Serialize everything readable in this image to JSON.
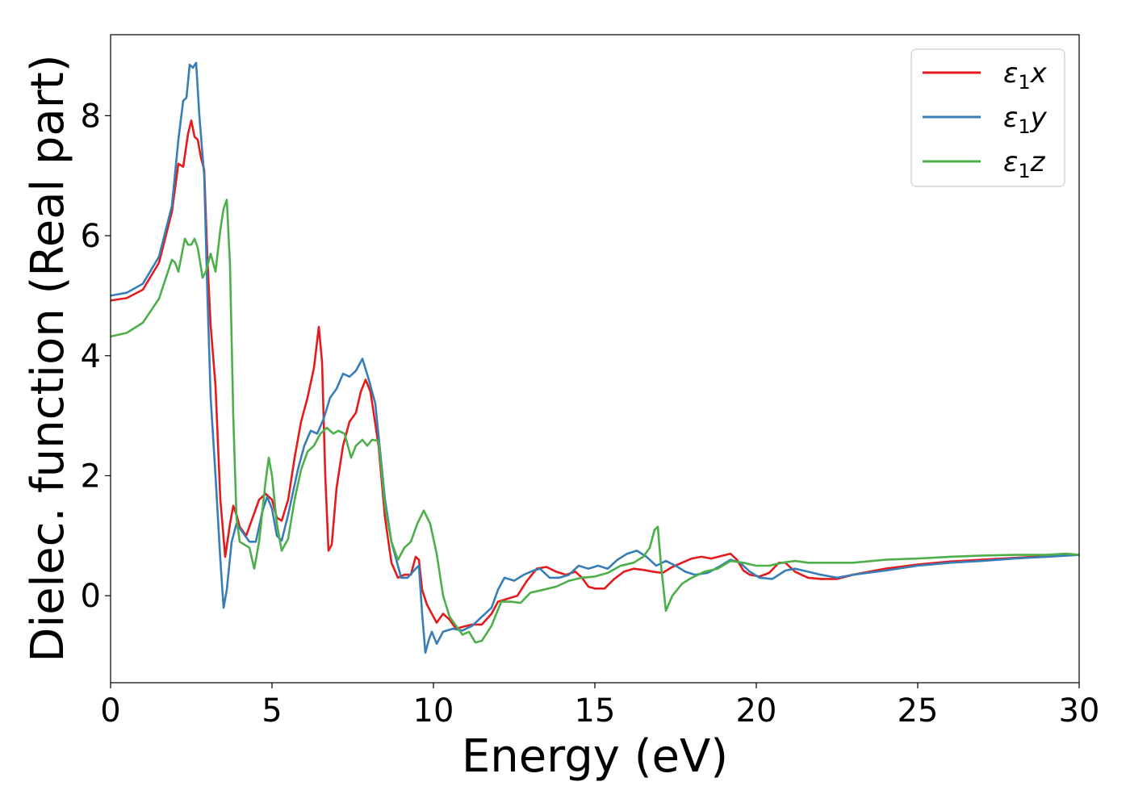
{
  "chart_data": {
    "type": "line",
    "title": "",
    "xlabel": "Energy (eV)",
    "ylabel": "Dielec. function (Real part)",
    "xlim": [
      0,
      30
    ],
    "ylim": [
      -1.45,
      9.35
    ],
    "xticks": [
      0,
      5,
      10,
      15,
      20,
      25,
      30
    ],
    "yticks": [
      0,
      2,
      4,
      6,
      8
    ],
    "grid": false,
    "legend_position": "top-right",
    "series": [
      {
        "name": "ε1x",
        "legend": {
          "base": "ε",
          "sub": "1",
          "comp": "x"
        },
        "color": "#e41a1c",
        "points": [
          [
            0,
            4.92
          ],
          [
            0.5,
            4.96
          ],
          [
            1,
            5.1
          ],
          [
            1.5,
            5.55
          ],
          [
            1.9,
            6.4
          ],
          [
            2.1,
            7.2
          ],
          [
            2.25,
            7.15
          ],
          [
            2.4,
            7.7
          ],
          [
            2.5,
            7.92
          ],
          [
            2.6,
            7.65
          ],
          [
            2.7,
            7.6
          ],
          [
            2.8,
            7.3
          ],
          [
            2.9,
            7.1
          ],
          [
            3.0,
            5.6
          ],
          [
            3.1,
            4.5
          ],
          [
            3.25,
            3.5
          ],
          [
            3.4,
            1.6
          ],
          [
            3.55,
            0.65
          ],
          [
            3.7,
            1.2
          ],
          [
            3.8,
            1.5
          ],
          [
            3.9,
            1.35
          ],
          [
            4.0,
            1.15
          ],
          [
            4.2,
            1.0
          ],
          [
            4.4,
            1.3
          ],
          [
            4.6,
            1.6
          ],
          [
            4.8,
            1.7
          ],
          [
            5.0,
            1.6
          ],
          [
            5.15,
            1.3
          ],
          [
            5.3,
            1.25
          ],
          [
            5.5,
            1.6
          ],
          [
            5.7,
            2.3
          ],
          [
            5.9,
            2.9
          ],
          [
            6.1,
            3.3
          ],
          [
            6.3,
            3.8
          ],
          [
            6.45,
            4.48
          ],
          [
            6.55,
            3.9
          ],
          [
            6.65,
            2.0
          ],
          [
            6.75,
            0.75
          ],
          [
            6.85,
            0.85
          ],
          [
            7.0,
            1.8
          ],
          [
            7.2,
            2.5
          ],
          [
            7.4,
            2.9
          ],
          [
            7.6,
            3.05
          ],
          [
            7.75,
            3.4
          ],
          [
            7.9,
            3.6
          ],
          [
            8.05,
            3.4
          ],
          [
            8.3,
            2.5
          ],
          [
            8.5,
            1.3
          ],
          [
            8.7,
            0.55
          ],
          [
            8.9,
            0.3
          ],
          [
            9.1,
            0.35
          ],
          [
            9.3,
            0.35
          ],
          [
            9.45,
            0.65
          ],
          [
            9.55,
            0.6
          ],
          [
            9.65,
            0.1
          ],
          [
            9.8,
            -0.15
          ],
          [
            9.95,
            -0.3
          ],
          [
            10.1,
            -0.45
          ],
          [
            10.3,
            -0.3
          ],
          [
            10.5,
            -0.4
          ],
          [
            10.7,
            -0.55
          ],
          [
            10.9,
            -0.52
          ],
          [
            11.2,
            -0.48
          ],
          [
            11.5,
            -0.48
          ],
          [
            11.8,
            -0.3
          ],
          [
            12.0,
            -0.1
          ],
          [
            12.3,
            -0.05
          ],
          [
            12.6,
            0.0
          ],
          [
            12.9,
            0.25
          ],
          [
            13.2,
            0.45
          ],
          [
            13.5,
            0.48
          ],
          [
            13.8,
            0.4
          ],
          [
            14.1,
            0.35
          ],
          [
            14.4,
            0.4
          ],
          [
            14.6,
            0.3
          ],
          [
            14.8,
            0.15
          ],
          [
            15.0,
            0.12
          ],
          [
            15.3,
            0.12
          ],
          [
            15.6,
            0.28
          ],
          [
            15.9,
            0.4
          ],
          [
            16.2,
            0.45
          ],
          [
            16.5,
            0.43
          ],
          [
            16.8,
            0.4
          ],
          [
            17.1,
            0.38
          ],
          [
            17.4,
            0.48
          ],
          [
            17.7,
            0.55
          ],
          [
            18.0,
            0.62
          ],
          [
            18.3,
            0.65
          ],
          [
            18.6,
            0.62
          ],
          [
            18.9,
            0.66
          ],
          [
            19.2,
            0.7
          ],
          [
            19.4,
            0.6
          ],
          [
            19.6,
            0.42
          ],
          [
            19.8,
            0.35
          ],
          [
            20.1,
            0.32
          ],
          [
            20.4,
            0.38
          ],
          [
            20.7,
            0.55
          ],
          [
            20.9,
            0.55
          ],
          [
            21.2,
            0.4
          ],
          [
            21.6,
            0.3
          ],
          [
            22.0,
            0.28
          ],
          [
            22.5,
            0.28
          ],
          [
            23.0,
            0.35
          ],
          [
            24.0,
            0.45
          ],
          [
            25.0,
            0.52
          ],
          [
            26.0,
            0.57
          ],
          [
            27.0,
            0.6
          ],
          [
            28.0,
            0.63
          ],
          [
            29.0,
            0.66
          ],
          [
            30.0,
            0.68
          ]
        ]
      },
      {
        "name": "ε1y",
        "legend": {
          "base": "ε",
          "sub": "1",
          "comp": "y"
        },
        "color": "#377eb8",
        "points": [
          [
            0,
            5.0
          ],
          [
            0.5,
            5.05
          ],
          [
            1,
            5.2
          ],
          [
            1.5,
            5.65
          ],
          [
            1.9,
            6.5
          ],
          [
            2.1,
            7.6
          ],
          [
            2.25,
            8.25
          ],
          [
            2.35,
            8.3
          ],
          [
            2.45,
            8.85
          ],
          [
            2.55,
            8.8
          ],
          [
            2.65,
            8.88
          ],
          [
            2.75,
            8.0
          ],
          [
            2.9,
            7.0
          ],
          [
            3.0,
            5.0
          ],
          [
            3.1,
            3.3
          ],
          [
            3.25,
            2.0
          ],
          [
            3.4,
            0.6
          ],
          [
            3.5,
            -0.2
          ],
          [
            3.6,
            0.1
          ],
          [
            3.75,
            0.9
          ],
          [
            3.9,
            1.2
          ],
          [
            4.1,
            1.05
          ],
          [
            4.3,
            0.9
          ],
          [
            4.5,
            0.9
          ],
          [
            4.7,
            1.4
          ],
          [
            4.85,
            1.65
          ],
          [
            5.0,
            1.45
          ],
          [
            5.15,
            1.0
          ],
          [
            5.3,
            0.92
          ],
          [
            5.5,
            1.35
          ],
          [
            5.8,
            2.1
          ],
          [
            6.0,
            2.5
          ],
          [
            6.2,
            2.75
          ],
          [
            6.4,
            2.7
          ],
          [
            6.6,
            2.95
          ],
          [
            6.8,
            3.3
          ],
          [
            7.0,
            3.45
          ],
          [
            7.2,
            3.7
          ],
          [
            7.4,
            3.65
          ],
          [
            7.6,
            3.75
          ],
          [
            7.8,
            3.95
          ],
          [
            8.0,
            3.6
          ],
          [
            8.2,
            3.2
          ],
          [
            8.5,
            1.6
          ],
          [
            8.7,
            0.9
          ],
          [
            9.0,
            0.3
          ],
          [
            9.2,
            0.3
          ],
          [
            9.45,
            0.45
          ],
          [
            9.55,
            0.5
          ],
          [
            9.65,
            -0.3
          ],
          [
            9.75,
            -0.95
          ],
          [
            9.85,
            -0.75
          ],
          [
            9.95,
            -0.6
          ],
          [
            10.1,
            -0.8
          ],
          [
            10.3,
            -0.6
          ],
          [
            10.6,
            -0.55
          ],
          [
            10.9,
            -0.58
          ],
          [
            11.2,
            -0.5
          ],
          [
            11.5,
            -0.35
          ],
          [
            11.8,
            -0.2
          ],
          [
            12.0,
            0.1
          ],
          [
            12.2,
            0.3
          ],
          [
            12.5,
            0.25
          ],
          [
            12.8,
            0.35
          ],
          [
            13.1,
            0.42
          ],
          [
            13.3,
            0.45
          ],
          [
            13.6,
            0.3
          ],
          [
            13.9,
            0.3
          ],
          [
            14.2,
            0.35
          ],
          [
            14.5,
            0.5
          ],
          [
            14.8,
            0.45
          ],
          [
            15.1,
            0.5
          ],
          [
            15.4,
            0.45
          ],
          [
            15.7,
            0.6
          ],
          [
            16.0,
            0.7
          ],
          [
            16.3,
            0.75
          ],
          [
            16.6,
            0.65
          ],
          [
            16.9,
            0.5
          ],
          [
            17.2,
            0.58
          ],
          [
            17.5,
            0.5
          ],
          [
            17.8,
            0.4
          ],
          [
            18.1,
            0.35
          ],
          [
            18.5,
            0.38
          ],
          [
            18.9,
            0.5
          ],
          [
            19.2,
            0.6
          ],
          [
            19.5,
            0.55
          ],
          [
            19.8,
            0.4
          ],
          [
            20.1,
            0.3
          ],
          [
            20.5,
            0.28
          ],
          [
            20.9,
            0.42
          ],
          [
            21.2,
            0.45
          ],
          [
            21.6,
            0.4
          ],
          [
            22.0,
            0.35
          ],
          [
            22.5,
            0.3
          ],
          [
            23.0,
            0.35
          ],
          [
            24.0,
            0.42
          ],
          [
            25.0,
            0.5
          ],
          [
            26.0,
            0.55
          ],
          [
            27.0,
            0.58
          ],
          [
            28.0,
            0.62
          ],
          [
            29.0,
            0.65
          ],
          [
            30.0,
            0.68
          ]
        ]
      },
      {
        "name": "ε1z",
        "legend": {
          "base": "ε",
          "sub": "1",
          "comp": "z"
        },
        "color": "#4daf4a",
        "points": [
          [
            0,
            4.32
          ],
          [
            0.5,
            4.38
          ],
          [
            1,
            4.55
          ],
          [
            1.5,
            4.95
          ],
          [
            1.9,
            5.6
          ],
          [
            2.0,
            5.55
          ],
          [
            2.1,
            5.4
          ],
          [
            2.3,
            5.95
          ],
          [
            2.4,
            5.85
          ],
          [
            2.5,
            5.85
          ],
          [
            2.6,
            5.95
          ],
          [
            2.7,
            5.8
          ],
          [
            2.85,
            5.3
          ],
          [
            2.95,
            5.4
          ],
          [
            3.1,
            5.7
          ],
          [
            3.25,
            5.4
          ],
          [
            3.4,
            6.1
          ],
          [
            3.5,
            6.45
          ],
          [
            3.6,
            6.6
          ],
          [
            3.7,
            5.5
          ],
          [
            3.8,
            3.0
          ],
          [
            3.9,
            1.3
          ],
          [
            4.0,
            0.9
          ],
          [
            4.15,
            0.85
          ],
          [
            4.3,
            0.8
          ],
          [
            4.45,
            0.45
          ],
          [
            4.6,
            0.9
          ],
          [
            4.8,
            1.9
          ],
          [
            4.9,
            2.3
          ],
          [
            5.0,
            2.0
          ],
          [
            5.15,
            1.2
          ],
          [
            5.3,
            0.75
          ],
          [
            5.5,
            0.95
          ],
          [
            5.7,
            1.6
          ],
          [
            5.9,
            2.1
          ],
          [
            6.1,
            2.4
          ],
          [
            6.3,
            2.5
          ],
          [
            6.5,
            2.7
          ],
          [
            6.7,
            2.8
          ],
          [
            6.9,
            2.7
          ],
          [
            7.05,
            2.75
          ],
          [
            7.25,
            2.7
          ],
          [
            7.45,
            2.3
          ],
          [
            7.6,
            2.5
          ],
          [
            7.8,
            2.6
          ],
          [
            7.95,
            2.5
          ],
          [
            8.1,
            2.6
          ],
          [
            8.3,
            2.58
          ],
          [
            8.5,
            1.5
          ],
          [
            8.7,
            0.9
          ],
          [
            8.9,
            0.6
          ],
          [
            9.1,
            0.8
          ],
          [
            9.3,
            0.9
          ],
          [
            9.5,
            1.2
          ],
          [
            9.7,
            1.42
          ],
          [
            9.9,
            1.2
          ],
          [
            10.1,
            0.7
          ],
          [
            10.3,
            0.0
          ],
          [
            10.5,
            -0.35
          ],
          [
            10.7,
            -0.5
          ],
          [
            10.9,
            -0.65
          ],
          [
            11.1,
            -0.6
          ],
          [
            11.3,
            -0.78
          ],
          [
            11.5,
            -0.75
          ],
          [
            11.8,
            -0.5
          ],
          [
            12.1,
            -0.1
          ],
          [
            12.4,
            -0.1
          ],
          [
            12.7,
            -0.12
          ],
          [
            13.0,
            0.05
          ],
          [
            13.4,
            0.1
          ],
          [
            13.8,
            0.15
          ],
          [
            14.2,
            0.25
          ],
          [
            14.6,
            0.3
          ],
          [
            15.0,
            0.32
          ],
          [
            15.4,
            0.38
          ],
          [
            15.8,
            0.5
          ],
          [
            16.2,
            0.55
          ],
          [
            16.5,
            0.65
          ],
          [
            16.7,
            0.8
          ],
          [
            16.85,
            1.1
          ],
          [
            16.95,
            1.15
          ],
          [
            17.05,
            0.5
          ],
          [
            17.2,
            -0.25
          ],
          [
            17.4,
            0.0
          ],
          [
            17.7,
            0.2
          ],
          [
            18.0,
            0.3
          ],
          [
            18.4,
            0.4
          ],
          [
            18.8,
            0.45
          ],
          [
            19.2,
            0.58
          ],
          [
            19.6,
            0.55
          ],
          [
            20.0,
            0.5
          ],
          [
            20.4,
            0.5
          ],
          [
            20.8,
            0.55
          ],
          [
            21.2,
            0.58
          ],
          [
            21.6,
            0.55
          ],
          [
            22.0,
            0.55
          ],
          [
            22.5,
            0.55
          ],
          [
            23.0,
            0.55
          ],
          [
            24.0,
            0.6
          ],
          [
            25.0,
            0.62
          ],
          [
            26.0,
            0.65
          ],
          [
            27.0,
            0.67
          ],
          [
            28.0,
            0.68
          ],
          [
            29.0,
            0.68
          ],
          [
            29.6,
            0.7
          ],
          [
            30.0,
            0.68
          ]
        ]
      }
    ]
  }
}
